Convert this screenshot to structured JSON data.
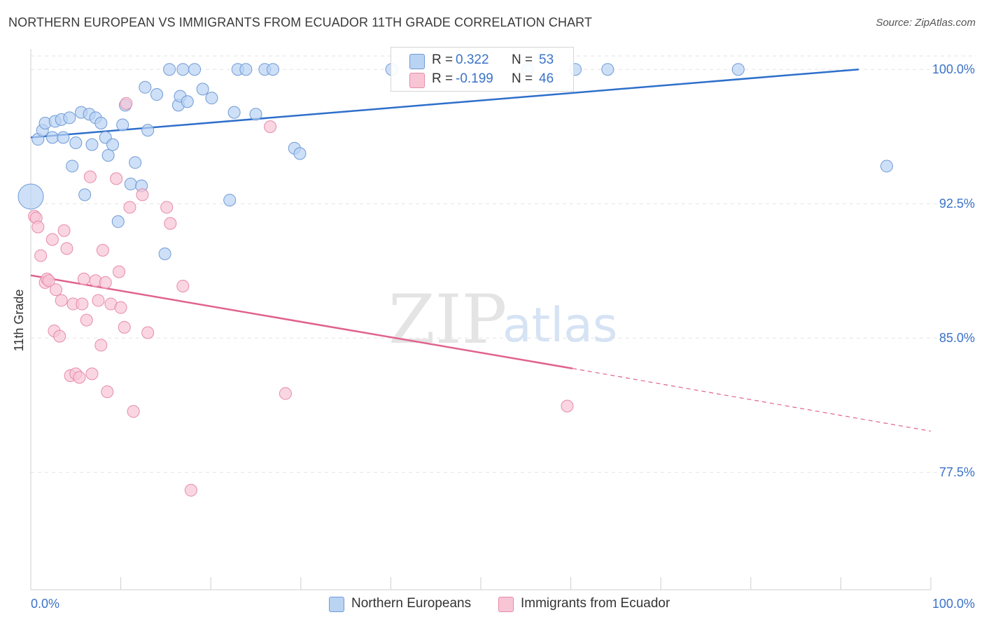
{
  "title": "NORTHERN EUROPEAN VS IMMIGRANTS FROM ECUADOR 11TH GRADE CORRELATION CHART",
  "source": "Source: ZipAtlas.com",
  "watermark": {
    "zip": "ZIP",
    "atlas": "atlas"
  },
  "colors": {
    "blue_fill": "#b9d3f3",
    "blue_stroke": "#6f9ad6",
    "blue_line": "#2e6fcb",
    "pink_fill": "#f8c5d5",
    "pink_stroke": "#e68aaa",
    "pink_line": "#e0628f",
    "axis_text": "#3b73c9",
    "grid": "#e3e3e3"
  },
  "legend_stats": [
    {
      "r_label": "R =",
      "r_value": "0.322",
      "n_label": "N =",
      "n_value": "53",
      "color": "#b9d3f3",
      "border": "#6f9ad6"
    },
    {
      "r_label": "R =",
      "r_value": "-0.199",
      "n_label": "N =",
      "n_value": "46",
      "color": "#f8c5d5",
      "border": "#e68aaa"
    }
  ],
  "chart_data": {
    "type": "scatter",
    "title": "NORTHERN EUROPEAN VS IMMIGRANTS FROM ECUADOR 11TH GRADE CORRELATION CHART",
    "xlabel": "",
    "ylabel": "11th Grade",
    "xlim": [
      0,
      100
    ],
    "ylim": [
      70.5,
      101
    ],
    "x_tick_labels": [
      "0.0%",
      "100.0%"
    ],
    "y_ticks": [
      77.5,
      85.0,
      92.5,
      100.0
    ],
    "y_tick_labels": [
      "77.5%",
      "85.0%",
      "92.5%",
      "100.0%"
    ],
    "grid": true,
    "legend_position": "bottom",
    "series": [
      {
        "name": "Northern Europeans",
        "color": "#b9d3f3",
        "trend": {
          "x": [
            0,
            92
          ],
          "y": [
            96.2,
            100.0
          ]
        },
        "points": [
          [
            0.0,
            92.9
          ],
          [
            0.8,
            96.1
          ],
          [
            1.3,
            96.6
          ],
          [
            1.6,
            97.0
          ],
          [
            2.4,
            96.2
          ],
          [
            2.7,
            97.1
          ],
          [
            3.4,
            97.2
          ],
          [
            3.6,
            96.2
          ],
          [
            4.3,
            97.3
          ],
          [
            4.6,
            94.6
          ],
          [
            5.0,
            95.9
          ],
          [
            5.6,
            97.6
          ],
          [
            6.0,
            93.0
          ],
          [
            6.5,
            97.5
          ],
          [
            6.8,
            95.8
          ],
          [
            7.2,
            97.3
          ],
          [
            7.8,
            97.0
          ],
          [
            8.3,
            96.2
          ],
          [
            8.6,
            95.2
          ],
          [
            9.1,
            95.8
          ],
          [
            9.7,
            91.5
          ],
          [
            10.2,
            96.9
          ],
          [
            10.5,
            98.0
          ],
          [
            11.1,
            93.6
          ],
          [
            11.6,
            94.8
          ],
          [
            12.3,
            93.5
          ],
          [
            12.7,
            99.0
          ],
          [
            13.0,
            96.6
          ],
          [
            14.0,
            98.6
          ],
          [
            14.9,
            89.7
          ],
          [
            15.4,
            100.0
          ],
          [
            16.4,
            98.0
          ],
          [
            16.6,
            98.5
          ],
          [
            16.9,
            100.0
          ],
          [
            17.4,
            98.2
          ],
          [
            18.2,
            100.0
          ],
          [
            19.1,
            98.9
          ],
          [
            20.1,
            98.4
          ],
          [
            22.1,
            92.7
          ],
          [
            22.6,
            97.6
          ],
          [
            23.0,
            100.0
          ],
          [
            23.9,
            100.0
          ],
          [
            25.0,
            97.5
          ],
          [
            26.0,
            100.0
          ],
          [
            26.9,
            100.0
          ],
          [
            29.3,
            95.6
          ],
          [
            29.9,
            95.3
          ],
          [
            40.1,
            100.0
          ],
          [
            55.2,
            100.0
          ],
          [
            60.5,
            100.0
          ],
          [
            64.1,
            100.0
          ],
          [
            78.6,
            100.0
          ],
          [
            95.1,
            94.6
          ]
        ]
      },
      {
        "name": "Immigrants from Ecuador",
        "color": "#f8c5d5",
        "trend": {
          "x": [
            0,
            60.2
          ],
          "y": [
            88.5,
            83.3
          ]
        },
        "trend_dashed": {
          "x": [
            60.2,
            100
          ],
          "y": [
            83.3,
            79.8
          ]
        },
        "points": [
          [
            0.4,
            91.8
          ],
          [
            0.6,
            91.7
          ],
          [
            0.8,
            91.2
          ],
          [
            1.1,
            89.6
          ],
          [
            1.6,
            88.1
          ],
          [
            1.8,
            88.3
          ],
          [
            2.0,
            88.2
          ],
          [
            2.4,
            90.5
          ],
          [
            2.6,
            85.4
          ],
          [
            2.8,
            87.7
          ],
          [
            3.2,
            85.1
          ],
          [
            3.4,
            87.1
          ],
          [
            3.7,
            91.0
          ],
          [
            4.0,
            90.0
          ],
          [
            4.4,
            82.9
          ],
          [
            4.7,
            86.9
          ],
          [
            5.0,
            83.0
          ],
          [
            5.4,
            82.8
          ],
          [
            5.7,
            86.9
          ],
          [
            5.9,
            88.3
          ],
          [
            6.2,
            86.0
          ],
          [
            6.6,
            94.0
          ],
          [
            6.8,
            83.0
          ],
          [
            7.2,
            88.2
          ],
          [
            7.5,
            87.1
          ],
          [
            7.8,
            84.6
          ],
          [
            8.0,
            89.9
          ],
          [
            8.3,
            88.1
          ],
          [
            8.5,
            82.0
          ],
          [
            8.9,
            86.9
          ],
          [
            9.5,
            93.9
          ],
          [
            9.8,
            88.7
          ],
          [
            10.0,
            86.7
          ],
          [
            10.4,
            85.6
          ],
          [
            10.6,
            98.1
          ],
          [
            11.0,
            92.3
          ],
          [
            11.4,
            80.9
          ],
          [
            12.4,
            93.0
          ],
          [
            13.0,
            85.3
          ],
          [
            15.1,
            92.3
          ],
          [
            15.5,
            91.4
          ],
          [
            16.9,
            87.9
          ],
          [
            17.8,
            76.5
          ],
          [
            26.6,
            96.8
          ],
          [
            28.3,
            81.9
          ],
          [
            59.6,
            81.2
          ]
        ]
      }
    ]
  },
  "bottom_legend": [
    {
      "label": "Northern Europeans",
      "color": "#b9d3f3",
      "border": "#6f9ad6"
    },
    {
      "label": "Immigrants from Ecuador",
      "color": "#f8c5d5",
      "border": "#e68aaa"
    }
  ]
}
